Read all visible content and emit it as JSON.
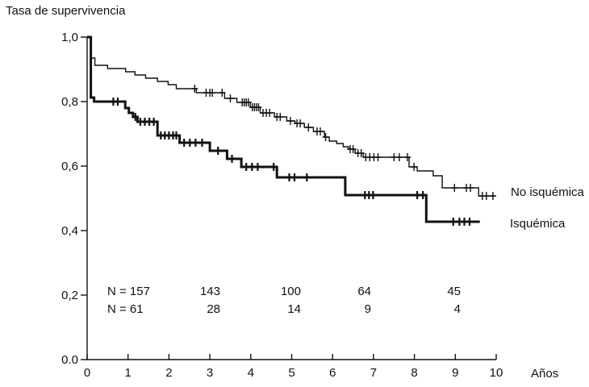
{
  "page_title": "Tasa de supervivencia",
  "colors": {
    "ink": "#111111",
    "background": "#ffffff"
  },
  "chart_data": {
    "type": "line",
    "subtype": "kaplan-meier-step",
    "title": "Tasa de supervivencia",
    "xlabel": "Años",
    "ylabel": "Tasa de supervivencia",
    "xlim": [
      0,
      10
    ],
    "ylim": [
      0.0,
      1.0
    ],
    "grid": false,
    "legend_position": "right-of-plot-end-of-curves",
    "x_ticks": [
      0,
      1,
      2,
      3,
      4,
      5,
      6,
      7,
      8,
      9,
      10
    ],
    "y_ticks": [
      {
        "value": 1.0,
        "label": "1,0"
      },
      {
        "value": 0.8,
        "label": "0,8"
      },
      {
        "value": 0.6,
        "label": "0,6"
      },
      {
        "value": 0.4,
        "label": "0,4"
      },
      {
        "value": 0.2,
        "label": "0,2"
      },
      {
        "value": 0.0,
        "label": "0.0"
      }
    ],
    "series": [
      {
        "name": "No isquémica",
        "style": "thin",
        "steps": [
          [
            0,
            1.0
          ],
          [
            0.09,
            0.935
          ],
          [
            0.19,
            0.9125
          ],
          [
            0.5,
            0.9025
          ],
          [
            0.94,
            0.8925
          ],
          [
            1.17,
            0.8825
          ],
          [
            1.43,
            0.8725
          ],
          [
            1.72,
            0.8625
          ],
          [
            1.98,
            0.8525
          ],
          [
            2.18,
            0.84
          ],
          [
            2.67,
            0.8275
          ],
          [
            3.36,
            0.81
          ],
          [
            3.66,
            0.7975
          ],
          [
            3.99,
            0.7825
          ],
          [
            4.23,
            0.765
          ],
          [
            4.58,
            0.7525
          ],
          [
            4.88,
            0.74
          ],
          [
            5.08,
            0.7325
          ],
          [
            5.31,
            0.72
          ],
          [
            5.53,
            0.7075
          ],
          [
            5.8,
            0.69
          ],
          [
            5.92,
            0.6775
          ],
          [
            6.1,
            0.67
          ],
          [
            6.26,
            0.66
          ],
          [
            6.39,
            0.6525
          ],
          [
            6.55,
            0.64
          ],
          [
            6.75,
            0.6275
          ],
          [
            7.87,
            0.5975
          ],
          [
            8.07,
            0.585
          ],
          [
            8.46,
            0.57
          ],
          [
            8.68,
            0.5325
          ],
          [
            9.57,
            0.5075
          ]
        ],
        "end_x": 9.98,
        "censors": [
          [
            2.63,
            0.84
          ],
          [
            2.91,
            0.8275
          ],
          [
            3.0,
            0.8275
          ],
          [
            3.06,
            0.8275
          ],
          [
            3.3,
            0.8275
          ],
          [
            3.5,
            0.81
          ],
          [
            3.79,
            0.7975
          ],
          [
            3.84,
            0.7975
          ],
          [
            3.89,
            0.7975
          ],
          [
            3.94,
            0.7975
          ],
          [
            4.04,
            0.7825
          ],
          [
            4.09,
            0.7825
          ],
          [
            4.14,
            0.7825
          ],
          [
            4.19,
            0.7825
          ],
          [
            4.3,
            0.765
          ],
          [
            4.38,
            0.765
          ],
          [
            4.46,
            0.765
          ],
          [
            4.64,
            0.7525
          ],
          [
            4.72,
            0.7525
          ],
          [
            4.97,
            0.74
          ],
          [
            5.13,
            0.7325
          ],
          [
            5.21,
            0.7325
          ],
          [
            5.41,
            0.72
          ],
          [
            5.62,
            0.7075
          ],
          [
            5.7,
            0.7075
          ],
          [
            5.83,
            0.69
          ],
          [
            6.43,
            0.6525
          ],
          [
            6.5,
            0.6525
          ],
          [
            6.62,
            0.64
          ],
          [
            6.7,
            0.64
          ],
          [
            6.81,
            0.6275
          ],
          [
            6.91,
            0.6275
          ],
          [
            7.01,
            0.6275
          ],
          [
            7.11,
            0.6275
          ],
          [
            7.5,
            0.6275
          ],
          [
            7.63,
            0.6275
          ],
          [
            7.83,
            0.6275
          ],
          [
            7.99,
            0.5975
          ],
          [
            8.98,
            0.5325
          ],
          [
            9.27,
            0.5325
          ],
          [
            9.37,
            0.5325
          ],
          [
            9.66,
            0.5075
          ],
          [
            9.76,
            0.5075
          ],
          [
            9.92,
            0.5075
          ]
        ]
      },
      {
        "name": "Isquémica",
        "style": "thick",
        "steps": [
          [
            0,
            1.0
          ],
          [
            0.09,
            0.8125
          ],
          [
            0.17,
            0.8
          ],
          [
            0.93,
            0.78
          ],
          [
            1.02,
            0.765
          ],
          [
            1.12,
            0.7525
          ],
          [
            1.23,
            0.7375
          ],
          [
            1.72,
            0.695
          ],
          [
            2.26,
            0.6725
          ],
          [
            3.0,
            0.6475
          ],
          [
            3.42,
            0.6225
          ],
          [
            3.77,
            0.5975
          ],
          [
            4.64,
            0.565
          ],
          [
            6.31,
            0.51
          ],
          [
            8.29,
            0.4275
          ]
        ],
        "end_x": 9.6,
        "censors": [
          [
            0.64,
            0.8
          ],
          [
            0.75,
            0.8
          ],
          [
            1.18,
            0.7525
          ],
          [
            1.3,
            0.7375
          ],
          [
            1.41,
            0.7375
          ],
          [
            1.52,
            0.7375
          ],
          [
            1.63,
            0.7375
          ],
          [
            1.8,
            0.695
          ],
          [
            1.9,
            0.695
          ],
          [
            2.0,
            0.695
          ],
          [
            2.1,
            0.695
          ],
          [
            2.18,
            0.695
          ],
          [
            2.37,
            0.6725
          ],
          [
            2.51,
            0.6725
          ],
          [
            2.65,
            0.6725
          ],
          [
            2.81,
            0.6725
          ],
          [
            3.2,
            0.6475
          ],
          [
            3.54,
            0.6225
          ],
          [
            3.89,
            0.5975
          ],
          [
            4.03,
            0.5975
          ],
          [
            4.17,
            0.5975
          ],
          [
            4.56,
            0.5975
          ],
          [
            4.94,
            0.565
          ],
          [
            5.07,
            0.565
          ],
          [
            5.37,
            0.565
          ],
          [
            6.79,
            0.51
          ],
          [
            6.89,
            0.51
          ],
          [
            6.99,
            0.51
          ],
          [
            8.07,
            0.51
          ],
          [
            8.21,
            0.51
          ],
          [
            8.95,
            0.4275
          ],
          [
            9.1,
            0.4275
          ],
          [
            9.22,
            0.4275
          ],
          [
            9.35,
            0.4275
          ]
        ]
      }
    ],
    "risk_table": {
      "rows": [
        {
          "series": "No isquémica",
          "label": "N = 157",
          "values": [
            "143",
            "100",
            "64",
            "45"
          ]
        },
        {
          "series": "Isquémica",
          "label": "N = 61",
          "values": [
            "28",
            "14",
            "9",
            "4"
          ]
        }
      ]
    }
  }
}
